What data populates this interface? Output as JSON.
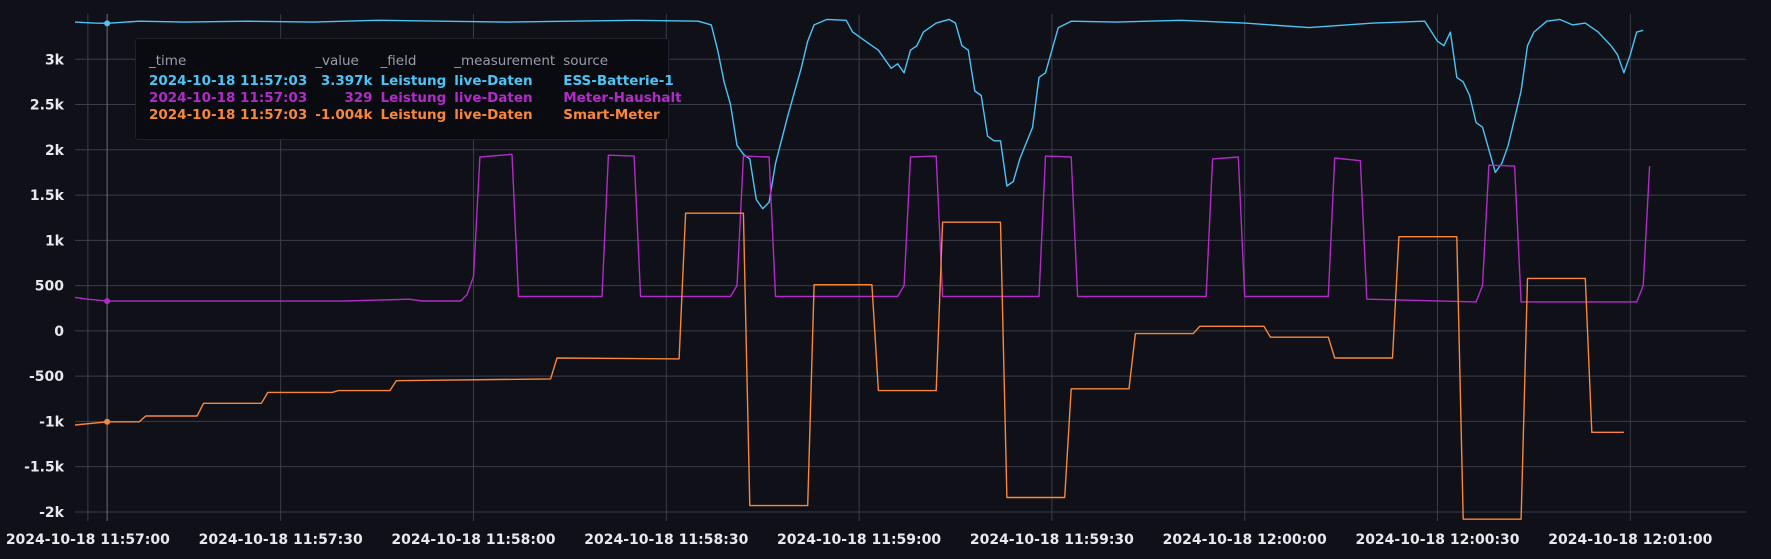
{
  "colors": {
    "background": "#0f1018",
    "grid": "#3a3d4a",
    "tick_text": "#e8e8ef",
    "tooltip_header": "#9a9cab"
  },
  "tooltip": {
    "headers": [
      "_time",
      "_value",
      "_field",
      "_measurement",
      "source"
    ],
    "rows": [
      {
        "time": "2024-10-18 11:57:03",
        "value": "3.397k",
        "field": "Leistung",
        "measurement": "live-Daten",
        "source": "ESS-Batterie-1",
        "color": "#4cc4f5"
      },
      {
        "time": "2024-10-18 11:57:03",
        "value": "329",
        "field": "Leistung",
        "measurement": "live-Daten",
        "source": "Meter-Haushalt",
        "color": "#b12cc7"
      },
      {
        "time": "2024-10-18 11:57:03",
        "value": "-1.004k",
        "field": "Leistung",
        "measurement": "live-Daten",
        "source": "Smart-Meter",
        "color": "#f8873a"
      }
    ]
  },
  "chart_data": {
    "type": "line",
    "title": "",
    "xlabel": "",
    "ylabel": "",
    "xlim": [
      "2024-10-18 11:56:58",
      "2024-10-18 12:01:18"
    ],
    "ylim": [
      -2100,
      3500
    ],
    "grid": true,
    "y_ticks": [
      3000,
      2500,
      2000,
      1500,
      1000,
      500,
      0,
      -500,
      -1000,
      -1500,
      -2000
    ],
    "y_tick_labels": [
      "3k",
      "2.5k",
      "2k",
      "1.5k",
      "1k",
      "500",
      "0",
      "-500",
      "-1k",
      "-1.5k",
      "-2k"
    ],
    "x_ticks": [
      "2024-10-18 11:57:00",
      "2024-10-18 11:57:30",
      "2024-10-18 11:58:00",
      "2024-10-18 11:58:30",
      "2024-10-18 11:59:00",
      "2024-10-18 11:59:30",
      "2024-10-18 12:00:00",
      "2024-10-18 12:00:30",
      "2024-10-18 12:01:00"
    ],
    "x_tick_labels": [
      "2024-10-18 11:57:00",
      "2024-10-18 11:57:30",
      "2024-10-18 11:58:00",
      "2024-10-18 11:58:30",
      "2024-10-18 11:59:00",
      "2024-10-18 11:59:30",
      "2024-10-18 12:00:00",
      "2024-10-18 12:00:30",
      "2024-10-18 12:01:00"
    ],
    "hover_time": "2024-10-18 11:57:03",
    "series": [
      {
        "name": "ESS-Batterie-1",
        "color": "#4cc4f5",
        "points": [
          [
            "2024-10-18 11:56:58",
            3410
          ],
          [
            "2024-10-18 11:57:01",
            3400
          ],
          [
            "2024-10-18 11:57:03",
            3397
          ],
          [
            "2024-10-18 11:57:08",
            3420
          ],
          [
            "2024-10-18 11:57:15",
            3410
          ],
          [
            "2024-10-18 11:57:25",
            3420
          ],
          [
            "2024-10-18 11:57:35",
            3410
          ],
          [
            "2024-10-18 11:57:45",
            3430
          ],
          [
            "2024-10-18 11:57:55",
            3420
          ],
          [
            "2024-10-18 11:58:05",
            3410
          ],
          [
            "2024-10-18 11:58:15",
            3420
          ],
          [
            "2024-10-18 11:58:25",
            3430
          ],
          [
            "2024-10-18 11:58:35",
            3420
          ],
          [
            "2024-10-18 11:58:37",
            3380
          ],
          [
            "2024-10-18 11:58:38",
            3100
          ],
          [
            "2024-10-18 11:58:39",
            2750
          ],
          [
            "2024-10-18 11:58:40",
            2500
          ],
          [
            "2024-10-18 11:58:41",
            2050
          ],
          [
            "2024-10-18 11:58:42",
            1950
          ],
          [
            "2024-10-18 11:58:43",
            1900
          ],
          [
            "2024-10-18 11:58:44",
            1450
          ],
          [
            "2024-10-18 11:58:45",
            1350
          ],
          [
            "2024-10-18 11:58:46",
            1420
          ],
          [
            "2024-10-18 11:58:47",
            1850
          ],
          [
            "2024-10-18 11:58:49",
            2400
          ],
          [
            "2024-10-18 11:58:51",
            2900
          ],
          [
            "2024-10-18 11:58:52",
            3200
          ],
          [
            "2024-10-18 11:58:53",
            3380
          ],
          [
            "2024-10-18 11:58:55",
            3440
          ],
          [
            "2024-10-18 11:58:58",
            3430
          ],
          [
            "2024-10-18 11:58:59",
            3300
          ],
          [
            "2024-10-18 11:59:01",
            3200
          ],
          [
            "2024-10-18 11:59:03",
            3100
          ],
          [
            "2024-10-18 11:59:04",
            3000
          ],
          [
            "2024-10-18 11:59:05",
            2900
          ],
          [
            "2024-10-18 11:59:06",
            2950
          ],
          [
            "2024-10-18 11:59:07",
            2850
          ],
          [
            "2024-10-18 11:59:08",
            3100
          ],
          [
            "2024-10-18 11:59:09",
            3150
          ],
          [
            "2024-10-18 11:59:10",
            3300
          ],
          [
            "2024-10-18 11:59:12",
            3400
          ],
          [
            "2024-10-18 11:59:14",
            3440
          ],
          [
            "2024-10-18 11:59:15",
            3400
          ],
          [
            "2024-10-18 11:59:16",
            3150
          ],
          [
            "2024-10-18 11:59:17",
            3100
          ],
          [
            "2024-10-18 11:59:18",
            2650
          ],
          [
            "2024-10-18 11:59:19",
            2600
          ],
          [
            "2024-10-18 11:59:20",
            2150
          ],
          [
            "2024-10-18 11:59:21",
            2100
          ],
          [
            "2024-10-18 11:59:22",
            2100
          ],
          [
            "2024-10-18 11:59:23",
            1600
          ],
          [
            "2024-10-18 11:59:24",
            1650
          ],
          [
            "2024-10-18 11:59:25",
            1900
          ],
          [
            "2024-10-18 11:59:27",
            2250
          ],
          [
            "2024-10-18 11:59:28",
            2800
          ],
          [
            "2024-10-18 11:59:29",
            2850
          ],
          [
            "2024-10-18 11:59:30",
            3100
          ],
          [
            "2024-10-18 11:59:31",
            3350
          ],
          [
            "2024-10-18 11:59:33",
            3420
          ],
          [
            "2024-10-18 11:59:40",
            3410
          ],
          [
            "2024-10-18 11:59:50",
            3430
          ],
          [
            "2024-10-18 12:00:00",
            3400
          ],
          [
            "2024-10-18 12:00:10",
            3350
          ],
          [
            "2024-10-18 12:00:20",
            3400
          ],
          [
            "2024-10-18 12:00:28",
            3420
          ],
          [
            "2024-10-18 12:00:30",
            3200
          ],
          [
            "2024-10-18 12:00:31",
            3150
          ],
          [
            "2024-10-18 12:00:32",
            3300
          ],
          [
            "2024-10-18 12:00:33",
            2800
          ],
          [
            "2024-10-18 12:00:34",
            2750
          ],
          [
            "2024-10-18 12:00:35",
            2600
          ],
          [
            "2024-10-18 12:00:36",
            2300
          ],
          [
            "2024-10-18 12:00:37",
            2250
          ],
          [
            "2024-10-18 12:00:38",
            2000
          ],
          [
            "2024-10-18 12:00:39",
            1750
          ],
          [
            "2024-10-18 12:00:40",
            1850
          ],
          [
            "2024-10-18 12:00:41",
            2050
          ],
          [
            "2024-10-18 12:00:43",
            2650
          ],
          [
            "2024-10-18 12:00:44",
            3150
          ],
          [
            "2024-10-18 12:00:45",
            3300
          ],
          [
            "2024-10-18 12:00:47",
            3420
          ],
          [
            "2024-10-18 12:00:49",
            3440
          ],
          [
            "2024-10-18 12:00:51",
            3380
          ],
          [
            "2024-10-18 12:00:53",
            3400
          ],
          [
            "2024-10-18 12:00:55",
            3300
          ],
          [
            "2024-10-18 12:00:57",
            3150
          ],
          [
            "2024-10-18 12:00:58",
            3050
          ],
          [
            "2024-10-18 12:00:59",
            2850
          ],
          [
            "2024-10-18 12:01:00",
            3050
          ],
          [
            "2024-10-18 12:01:01",
            3300
          ],
          [
            "2024-10-18 12:01:02",
            3320
          ]
        ]
      },
      {
        "name": "Meter-Haushalt",
        "color": "#b12cc7",
        "points": [
          [
            "2024-10-18 11:56:58",
            370
          ],
          [
            "2024-10-18 11:57:00",
            350
          ],
          [
            "2024-10-18 11:57:03",
            329
          ],
          [
            "2024-10-18 11:57:40",
            330
          ],
          [
            "2024-10-18 11:57:50",
            350
          ],
          [
            "2024-10-18 11:57:52",
            330
          ],
          [
            "2024-10-18 11:57:58",
            330
          ],
          [
            "2024-10-18 11:57:59",
            400
          ],
          [
            "2024-10-18 11:58:00",
            600
          ],
          [
            "2024-10-18 11:58:01",
            1920
          ],
          [
            "2024-10-18 11:58:06",
            1950
          ],
          [
            "2024-10-18 11:58:07",
            380
          ],
          [
            "2024-10-18 11:58:20",
            380
          ],
          [
            "2024-10-18 11:58:21",
            1940
          ],
          [
            "2024-10-18 11:58:25",
            1930
          ],
          [
            "2024-10-18 11:58:26",
            380
          ],
          [
            "2024-10-18 11:58:40",
            380
          ],
          [
            "2024-10-18 11:58:41",
            500
          ],
          [
            "2024-10-18 11:58:42",
            1930
          ],
          [
            "2024-10-18 11:58:46",
            1920
          ],
          [
            "2024-10-18 11:58:47",
            380
          ],
          [
            "2024-10-18 11:59:06",
            380
          ],
          [
            "2024-10-18 11:59:07",
            500
          ],
          [
            "2024-10-18 11:59:08",
            1920
          ],
          [
            "2024-10-18 11:59:12",
            1930
          ],
          [
            "2024-10-18 11:59:13",
            380
          ],
          [
            "2024-10-18 11:59:28",
            380
          ],
          [
            "2024-10-18 11:59:29",
            1930
          ],
          [
            "2024-10-18 11:59:33",
            1920
          ],
          [
            "2024-10-18 11:59:34",
            380
          ],
          [
            "2024-10-18 11:59:54",
            380
          ],
          [
            "2024-10-18 11:59:55",
            1900
          ],
          [
            "2024-10-18 11:59:59",
            1920
          ],
          [
            "2024-10-18 12:00:00",
            380
          ],
          [
            "2024-10-18 12:00:13",
            380
          ],
          [
            "2024-10-18 12:00:14",
            1910
          ],
          [
            "2024-10-18 12:00:18",
            1880
          ],
          [
            "2024-10-18 12:00:19",
            350
          ],
          [
            "2024-10-18 12:00:36",
            320
          ],
          [
            "2024-10-18 12:00:37",
            500
          ],
          [
            "2024-10-18 12:00:38",
            1830
          ],
          [
            "2024-10-18 12:00:42",
            1820
          ],
          [
            "2024-10-18 12:00:43",
            320
          ],
          [
            "2024-10-18 12:01:01",
            320
          ],
          [
            "2024-10-18 12:01:02",
            500
          ],
          [
            "2024-10-18 12:01:03",
            1820
          ]
        ]
      },
      {
        "name": "Smart-Meter",
        "color": "#f8873a",
        "points": [
          [
            "2024-10-18 11:56:58",
            -1040
          ],
          [
            "2024-10-18 11:57:03",
            -1004
          ],
          [
            "2024-10-18 11:57:08",
            -1004
          ],
          [
            "2024-10-18 11:57:09",
            -940
          ],
          [
            "2024-10-18 11:57:17",
            -940
          ],
          [
            "2024-10-18 11:57:18",
            -800
          ],
          [
            "2024-10-18 11:57:27",
            -800
          ],
          [
            "2024-10-18 11:57:28",
            -680
          ],
          [
            "2024-10-18 11:57:38",
            -680
          ],
          [
            "2024-10-18 11:57:39",
            -660
          ],
          [
            "2024-10-18 11:57:47",
            -660
          ],
          [
            "2024-10-18 11:57:48",
            -550
          ],
          [
            "2024-10-18 11:58:12",
            -530
          ],
          [
            "2024-10-18 11:58:13",
            -300
          ],
          [
            "2024-10-18 11:58:32",
            -310
          ],
          [
            "2024-10-18 11:58:33",
            1300
          ],
          [
            "2024-10-18 11:58:42",
            1300
          ],
          [
            "2024-10-18 11:58:43",
            -1930
          ],
          [
            "2024-10-18 11:58:52",
            -1930
          ],
          [
            "2024-10-18 11:58:53",
            510
          ],
          [
            "2024-10-18 11:59:02",
            510
          ],
          [
            "2024-10-18 11:59:03",
            -660
          ],
          [
            "2024-10-18 11:59:12",
            -660
          ],
          [
            "2024-10-18 11:59:13",
            1200
          ],
          [
            "2024-10-18 11:59:22",
            1200
          ],
          [
            "2024-10-18 11:59:23",
            -1840
          ],
          [
            "2024-10-18 11:59:32",
            -1840
          ],
          [
            "2024-10-18 11:59:33",
            -640
          ],
          [
            "2024-10-18 11:59:42",
            -640
          ],
          [
            "2024-10-18 11:59:43",
            -30
          ],
          [
            "2024-10-18 11:59:52",
            -30
          ],
          [
            "2024-10-18 11:59:53",
            50
          ],
          [
            "2024-10-18 12:00:03",
            50
          ],
          [
            "2024-10-18 12:00:04",
            -70
          ],
          [
            "2024-10-18 12:00:13",
            -70
          ],
          [
            "2024-10-18 12:00:14",
            -300
          ],
          [
            "2024-10-18 12:00:23",
            -300
          ],
          [
            "2024-10-18 12:00:24",
            1040
          ],
          [
            "2024-10-18 12:00:33",
            1040
          ],
          [
            "2024-10-18 12:00:34",
            -2080
          ],
          [
            "2024-10-18 12:00:43",
            -2080
          ],
          [
            "2024-10-18 12:00:44",
            580
          ],
          [
            "2024-10-18 12:00:53",
            580
          ],
          [
            "2024-10-18 12:00:54",
            -1120
          ],
          [
            "2024-10-18 12:00:59",
            -1120
          ]
        ]
      }
    ]
  }
}
